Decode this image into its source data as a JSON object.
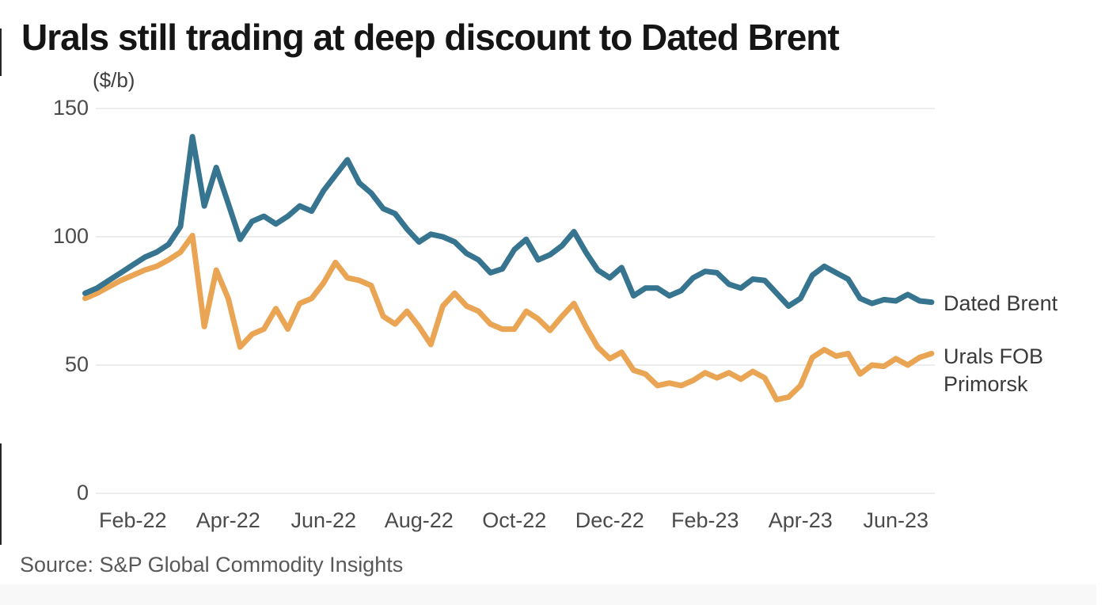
{
  "title": "Urals still trading at deep discount to Dated Brent",
  "unit_label": "($/b)",
  "source": "Source: S&P Global Commodity Insights",
  "series_labels": {
    "brent": "Dated Brent",
    "urals_line1": "Urals FOB",
    "urals_line2": "Primorsk"
  },
  "colors": {
    "brent_line": "#36748f",
    "urals_line": "#eaa554",
    "gridline": "#e7e7e7",
    "axis_text": "#4b4b4b",
    "title_text": "#151515",
    "source_text": "#585858"
  },
  "chart_data": {
    "type": "line",
    "title": "Urals still trading at deep discount to Dated Brent",
    "ylabel": "($/b)",
    "xlabel": "",
    "grid": "horizontal-only",
    "legend_position": "right-end-of-lines",
    "ylim": [
      0,
      150
    ],
    "y_ticks": [
      150,
      100,
      50,
      0
    ],
    "x_tick_labels": [
      "Feb-22",
      "Apr-22",
      "Jun-22",
      "Aug-22",
      "Oct-22",
      "Dec-22",
      "Feb-23",
      "Apr-23",
      "Jun-23"
    ],
    "x_tick_months": [
      1,
      3,
      5,
      7,
      9,
      11,
      13,
      15,
      17
    ],
    "x_unit": "months since 01-Jan-2022, data sampled ~weekly",
    "xlim": [
      0,
      17.75
    ],
    "x_step": 0.25,
    "series": [
      {
        "name": "Dated Brent",
        "color": "#36748f",
        "values": [
          78,
          80,
          83,
          86,
          89,
          92,
          94,
          97,
          104,
          139,
          112,
          127,
          113,
          99,
          106,
          108,
          105,
          108,
          112,
          110,
          118,
          124,
          130,
          121,
          117,
          111,
          109,
          103,
          98,
          101,
          100,
          98,
          93.5,
          91,
          86,
          87.5,
          95,
          99,
          91,
          93,
          96.5,
          102,
          94,
          87,
          84,
          88,
          77,
          80,
          80,
          77,
          79,
          84,
          86.5,
          86,
          81.5,
          80,
          83.5,
          83,
          78,
          73,
          76,
          85,
          88.5,
          86,
          83.5,
          76,
          74,
          75.5,
          75,
          77.5,
          75,
          74.5
        ]
      },
      {
        "name": "Urals FOB Primorsk",
        "color": "#eaa554",
        "values": [
          76,
          78,
          80.5,
          83,
          85,
          87,
          88.5,
          91,
          94,
          100.5,
          65,
          87,
          76,
          57,
          62,
          64,
          72,
          64,
          74,
          76,
          82,
          90,
          84,
          83,
          81,
          69,
          66,
          71,
          65,
          58,
          73,
          78,
          73,
          71,
          66,
          64,
          64,
          71,
          68,
          63.5,
          69,
          74,
          65,
          57,
          52.5,
          55,
          48,
          46.5,
          42,
          43,
          42,
          44,
          47,
          45,
          47,
          44.5,
          47.5,
          45,
          36.5,
          37.5,
          42,
          53,
          56,
          53.5,
          54.5,
          46.5,
          50,
          49.5,
          52.5,
          50,
          53,
          54.5
        ]
      }
    ]
  }
}
